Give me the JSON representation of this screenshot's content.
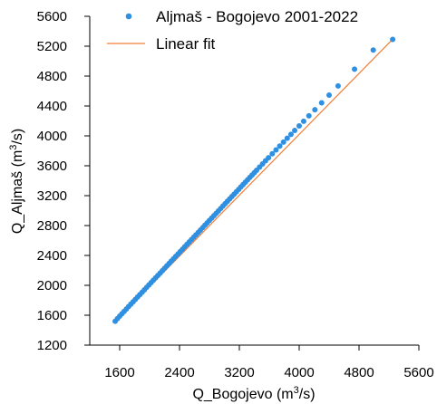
{
  "chart_data": {
    "type": "scatter",
    "title": "",
    "xlabel": "Q_Bogojevo (m³/s)",
    "ylabel": "Q_Aljmaš (m³/s)",
    "xlabel_base": "Q_Bogojevo (m",
    "ylabel_base": "Q_Aljmaš (m",
    "label_unit_sup": "3",
    "label_unit_tail": "/s)",
    "xlim": [
      1200,
      5600
    ],
    "ylim": [
      1200,
      5600
    ],
    "x_ticks": [
      1600,
      2400,
      3200,
      4000,
      4800,
      5600
    ],
    "y_ticks": [
      1200,
      1600,
      2000,
      2400,
      2800,
      3200,
      3600,
      4000,
      4400,
      4800,
      5200,
      5600
    ],
    "grid": false,
    "legend_position": "top-right",
    "series": [
      {
        "name": "Aljmaš - Bogojevo 2001-2022",
        "kind": "scatter",
        "color": "#2f8fe0",
        "x": [
          1540,
          1570,
          1600,
          1630,
          1660,
          1690,
          1720,
          1750,
          1780,
          1810,
          1840,
          1870,
          1900,
          1930,
          1960,
          1990,
          2020,
          2050,
          2080,
          2110,
          2140,
          2170,
          2200,
          2230,
          2260,
          2290,
          2320,
          2350,
          2380,
          2410,
          2440,
          2470,
          2500,
          2530,
          2560,
          2590,
          2620,
          2650,
          2680,
          2710,
          2740,
          2770,
          2800,
          2830,
          2860,
          2890,
          2920,
          2950,
          2980,
          3010,
          3040,
          3070,
          3100,
          3130,
          3160,
          3190,
          3220,
          3250,
          3280,
          3310,
          3340,
          3370,
          3400,
          3430,
          3470,
          3510,
          3550,
          3590,
          3640,
          3690,
          3740,
          3790,
          3840,
          3890,
          3940,
          4000,
          4060,
          4130,
          4210,
          4300,
          4400,
          4520,
          4740,
          4990,
          5250
        ],
        "y": [
          1520,
          1555,
          1588,
          1620,
          1652,
          1684,
          1716,
          1748,
          1780,
          1812,
          1844,
          1876,
          1908,
          1940,
          1972,
          2004,
          2036,
          2068,
          2100,
          2132,
          2164,
          2196,
          2228,
          2260,
          2292,
          2324,
          2356,
          2388,
          2420,
          2452,
          2484,
          2516,
          2548,
          2580,
          2612,
          2644,
          2676,
          2708,
          2740,
          2772,
          2804,
          2836,
          2868,
          2900,
          2932,
          2964,
          2996,
          3028,
          3060,
          3092,
          3124,
          3156,
          3188,
          3220,
          3252,
          3284,
          3316,
          3348,
          3380,
          3412,
          3444,
          3476,
          3508,
          3540,
          3582,
          3624,
          3666,
          3708,
          3760,
          3812,
          3864,
          3916,
          3968,
          4020,
          4072,
          4134,
          4196,
          4268,
          4350,
          4442,
          4545,
          4668,
          4893,
          5148,
          5291
        ]
      },
      {
        "name": "Linear fit",
        "kind": "line",
        "color": "#f07f3a",
        "x": [
          1540,
          5250
        ],
        "y": [
          1515,
          5293
        ]
      }
    ]
  }
}
